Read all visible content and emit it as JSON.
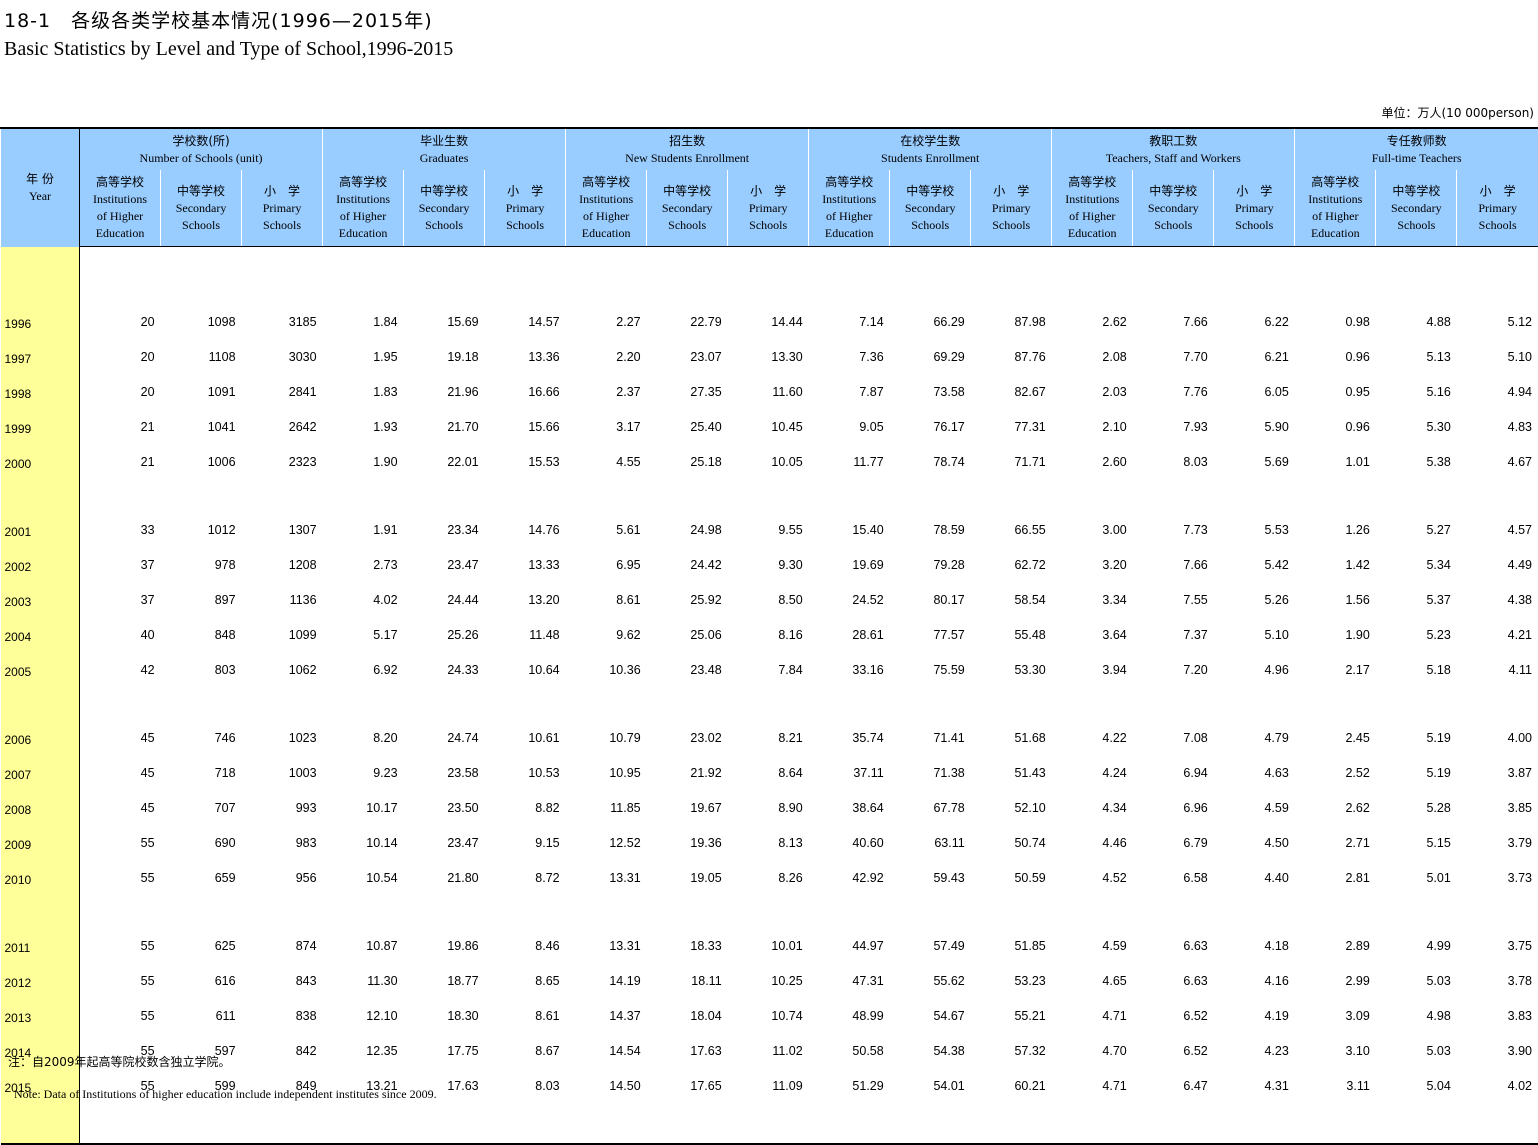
{
  "title_cn": "18-1　各级各类学校基本情况(1996—2015年)",
  "title_en": "Basic Statistics by Level and Type of School,1996-2015",
  "unit": "单位：万人(10 000person)",
  "year_header": {
    "cn": "年 份",
    "en": "Year"
  },
  "groups": [
    {
      "cn": "学校数(所)",
      "en": "Number of Schools (unit)"
    },
    {
      "cn": "毕业生数",
      "en": "Graduates"
    },
    {
      "cn": "招生数",
      "en": "New Students Enrollment"
    },
    {
      "cn": "在校学生数",
      "en": "Students Enrollment"
    },
    {
      "cn": "教职工数",
      "en": "Teachers, Staff and Workers"
    },
    {
      "cn": "专任教师数",
      "en": "Full-time Teachers"
    }
  ],
  "subcols": [
    {
      "cn": "高等学校",
      "en1": "Institutions",
      "en2": "of Higher",
      "en3": "Education"
    },
    {
      "cn": "中等学校",
      "en1": "Secondary",
      "en2": "Schools",
      "en3": ""
    },
    {
      "cn": "小　学",
      "en1": "Primary",
      "en2": "Schools",
      "en3": ""
    }
  ],
  "rows": [
    [
      "1996",
      "20",
      "1098",
      "3185",
      "1.84",
      "15.69",
      "14.57",
      "2.27",
      "22.79",
      "14.44",
      "7.14",
      "66.29",
      "87.98",
      "2.62",
      "7.66",
      "6.22",
      "0.98",
      "4.88",
      "5.12"
    ],
    [
      "1997",
      "20",
      "1108",
      "3030",
      "1.95",
      "19.18",
      "13.36",
      "2.20",
      "23.07",
      "13.30",
      "7.36",
      "69.29",
      "87.76",
      "2.08",
      "7.70",
      "6.21",
      "0.96",
      "5.13",
      "5.10"
    ],
    [
      "1998",
      "20",
      "1091",
      "2841",
      "1.83",
      "21.96",
      "16.66",
      "2.37",
      "27.35",
      "11.60",
      "7.87",
      "73.58",
      "82.67",
      "2.03",
      "7.76",
      "6.05",
      "0.95",
      "5.16",
      "4.94"
    ],
    [
      "1999",
      "21",
      "1041",
      "2642",
      "1.93",
      "21.70",
      "15.66",
      "3.17",
      "25.40",
      "10.45",
      "9.05",
      "76.17",
      "77.31",
      "2.10",
      "7.93",
      "5.90",
      "0.96",
      "5.30",
      "4.83"
    ],
    [
      "2000",
      "21",
      "1006",
      "2323",
      "1.90",
      "22.01",
      "15.53",
      "4.55",
      "25.18",
      "10.05",
      "11.77",
      "78.74",
      "71.71",
      "2.60",
      "8.03",
      "5.69",
      "1.01",
      "5.38",
      "4.67"
    ],
    [
      "2001",
      "33",
      "1012",
      "1307",
      "1.91",
      "23.34",
      "14.76",
      "5.61",
      "24.98",
      "9.55",
      "15.40",
      "78.59",
      "66.55",
      "3.00",
      "7.73",
      "5.53",
      "1.26",
      "5.27",
      "4.57"
    ],
    [
      "2002",
      "37",
      "978",
      "1208",
      "2.73",
      "23.47",
      "13.33",
      "6.95",
      "24.42",
      "9.30",
      "19.69",
      "79.28",
      "62.72",
      "3.20",
      "7.66",
      "5.42",
      "1.42",
      "5.34",
      "4.49"
    ],
    [
      "2003",
      "37",
      "897",
      "1136",
      "4.02",
      "24.44",
      "13.20",
      "8.61",
      "25.92",
      "8.50",
      "24.52",
      "80.17",
      "58.54",
      "3.34",
      "7.55",
      "5.26",
      "1.56",
      "5.37",
      "4.38"
    ],
    [
      "2004",
      "40",
      "848",
      "1099",
      "5.17",
      "25.26",
      "11.48",
      "9.62",
      "25.06",
      "8.16",
      "28.61",
      "77.57",
      "55.48",
      "3.64",
      "7.37",
      "5.10",
      "1.90",
      "5.23",
      "4.21"
    ],
    [
      "2005",
      "42",
      "803",
      "1062",
      "6.92",
      "24.33",
      "10.64",
      "10.36",
      "23.48",
      "7.84",
      "33.16",
      "75.59",
      "53.30",
      "3.94",
      "7.20",
      "4.96",
      "2.17",
      "5.18",
      "4.11"
    ],
    [
      "2006",
      "45",
      "746",
      "1023",
      "8.20",
      "24.74",
      "10.61",
      "10.79",
      "23.02",
      "8.21",
      "35.74",
      "71.41",
      "51.68",
      "4.22",
      "7.08",
      "4.79",
      "2.45",
      "5.19",
      "4.00"
    ],
    [
      "2007",
      "45",
      "718",
      "1003",
      "9.23",
      "23.58",
      "10.53",
      "10.95",
      "21.92",
      "8.64",
      "37.11",
      "71.38",
      "51.43",
      "4.24",
      "6.94",
      "4.63",
      "2.52",
      "5.19",
      "3.87"
    ],
    [
      "2008",
      "45",
      "707",
      "993",
      "10.17",
      "23.50",
      "8.82",
      "11.85",
      "19.67",
      "8.90",
      "38.64",
      "67.78",
      "52.10",
      "4.34",
      "6.96",
      "4.59",
      "2.62",
      "5.28",
      "3.85"
    ],
    [
      "2009",
      "55",
      "690",
      "983",
      "10.14",
      "23.47",
      "9.15",
      "12.52",
      "19.36",
      "8.13",
      "40.60",
      "63.11",
      "50.74",
      "4.46",
      "6.79",
      "4.50",
      "2.71",
      "5.15",
      "3.79"
    ],
    [
      "2010",
      "55",
      "659",
      "956",
      "10.54",
      "21.80",
      "8.72",
      "13.31",
      "19.05",
      "8.26",
      "42.92",
      "59.43",
      "50.59",
      "4.52",
      "6.58",
      "4.40",
      "2.81",
      "5.01",
      "3.73"
    ],
    [
      "2011",
      "55",
      "625",
      "874",
      "10.87",
      "19.86",
      "8.46",
      "13.31",
      "18.33",
      "10.01",
      "44.97",
      "57.49",
      "51.85",
      "4.59",
      "6.63",
      "4.18",
      "2.89",
      "4.99",
      "3.75"
    ],
    [
      "2012",
      "55",
      "616",
      "843",
      "11.30",
      "18.77",
      "8.65",
      "14.19",
      "18.11",
      "10.25",
      "47.31",
      "55.62",
      "53.23",
      "4.65",
      "6.63",
      "4.16",
      "2.99",
      "5.03",
      "3.78"
    ],
    [
      "2013",
      "55",
      "611",
      "838",
      "12.10",
      "18.30",
      "8.61",
      "14.37",
      "18.04",
      "10.74",
      "48.99",
      "54.67",
      "55.21",
      "4.71",
      "6.52",
      "4.19",
      "3.09",
      "4.98",
      "3.83"
    ],
    [
      "2014",
      "55",
      "597",
      "842",
      "12.35",
      "17.75",
      "8.67",
      "14.54",
      "17.63",
      "11.02",
      "50.58",
      "54.38",
      "57.32",
      "4.70",
      "6.52",
      "4.23",
      "3.10",
      "5.03",
      "3.90"
    ],
    [
      "2015",
      "55",
      "599",
      "849",
      "13.21",
      "17.63",
      "8.03",
      "14.50",
      "17.65",
      "11.09",
      "51.29",
      "54.01",
      "60.21",
      "4.71",
      "6.47",
      "4.31",
      "3.11",
      "5.04",
      "4.02"
    ]
  ],
  "note_cn": "注：自2009年起高等院校数含独立学院。",
  "note_en": "Note: Data of Institutions of higher education include independent institutes since 2009.",
  "colors": {
    "header_bg": "#99ccff",
    "year_bg": "#ffff99"
  }
}
